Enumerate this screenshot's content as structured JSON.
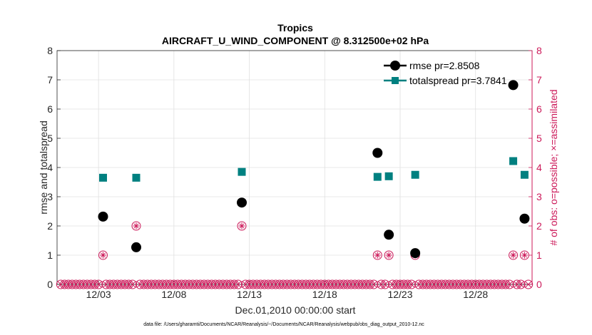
{
  "chart_data": {
    "type": "scatter",
    "title_line1": "Tropics",
    "title_line2": "AIRCRAFT_U_WIND_COMPONENT @ 8.312500e+02 hPa",
    "xlabel": "Dec.01,2010 00:00:00 start",
    "ylabel_left": "rmse and totalspread",
    "ylabel_right": "# of obs: o=possible; ×=assimilated",
    "footer": "data file: /Users/gharamti/Documents/NCAR/Reanalysis/~/Documents/NCAR/Reanalysis/webpub/obs_diag_output_2010-12.nc",
    "xlim": [
      0.75,
      32.25
    ],
    "ylim_left": [
      0,
      8
    ],
    "ylim_right": [
      0,
      8
    ],
    "yticks_left": [
      "0",
      "1",
      "2",
      "3",
      "4",
      "5",
      "6",
      "7",
      "8"
    ],
    "yticks_right": [
      "0",
      "1",
      "2",
      "3",
      "4",
      "5",
      "6",
      "7",
      "8"
    ],
    "xticks": [
      {
        "value": 3.5,
        "label": "12/03"
      },
      {
        "value": 8.5,
        "label": "12/08"
      },
      {
        "value": 13.5,
        "label": "12/13"
      },
      {
        "value": 18.5,
        "label": "12/18"
      },
      {
        "value": 23.5,
        "label": "12/23"
      },
      {
        "value": 28.5,
        "label": "12/28"
      }
    ],
    "colors": {
      "rmse": "#000000",
      "totalspread": "#008080",
      "nobs": "#cc1a5a",
      "grid": "#e0e0e0"
    },
    "series": [
      {
        "name": "rmse",
        "legend": "rmse pr=2.8508",
        "marker": "circle",
        "points": [
          {
            "x": 3.8,
            "y": 2.32
          },
          {
            "x": 6.0,
            "y": 1.27
          },
          {
            "x": 13.0,
            "y": 2.8
          },
          {
            "x": 22.0,
            "y": 4.5
          },
          {
            "x": 22.75,
            "y": 1.7
          },
          {
            "x": 24.5,
            "y": 1.07
          },
          {
            "x": 31.0,
            "y": 6.82
          },
          {
            "x": 31.75,
            "y": 2.25
          }
        ]
      },
      {
        "name": "totalspread",
        "legend": "totalspread pr=3.7841",
        "marker": "square",
        "points": [
          {
            "x": 3.8,
            "y": 3.65
          },
          {
            "x": 6.0,
            "y": 3.65
          },
          {
            "x": 13.0,
            "y": 3.85
          },
          {
            "x": 22.0,
            "y": 3.68
          },
          {
            "x": 22.75,
            "y": 3.7
          },
          {
            "x": 24.5,
            "y": 3.75
          },
          {
            "x": 31.0,
            "y": 4.22
          },
          {
            "x": 31.75,
            "y": 3.75
          }
        ]
      },
      {
        "name": "obs_possible_assimilated",
        "marker": "circle-star",
        "axis": "right",
        "points": [
          {
            "x": 3.8,
            "y": 1
          },
          {
            "x": 6.0,
            "y": 2
          },
          {
            "x": 13.0,
            "y": 2
          },
          {
            "x": 22.0,
            "y": 1
          },
          {
            "x": 22.75,
            "y": 1
          },
          {
            "x": 24.5,
            "y": 1
          },
          {
            "x": 31.0,
            "y": 1
          },
          {
            "x": 31.75,
            "y": 1
          }
        ],
        "zero_x_start": 1.0,
        "zero_x_end": 32.0,
        "zero_x_step": 0.25
      }
    ]
  }
}
